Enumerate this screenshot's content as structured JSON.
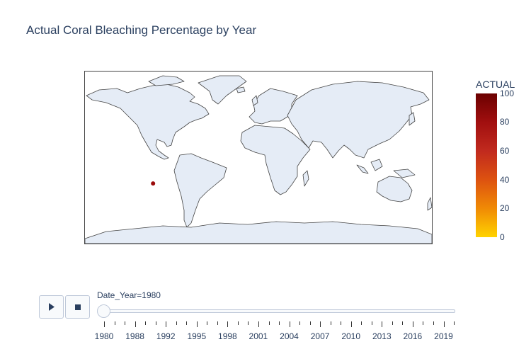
{
  "title": "Actual Coral Bleaching Percentage by Year",
  "colors": {
    "land": "#e5ecf6",
    "coastline": "#444444",
    "frame": "#444444",
    "text": "#2a3f5f",
    "marker": "#9a0a0a",
    "colorscale": [
      "#ffd300",
      "#f08a05",
      "#dd5210",
      "#c12a1e",
      "#a10f0f",
      "#6b0000"
    ]
  },
  "colorbar": {
    "title": "ACTUAL",
    "ticks": [
      "100",
      "80",
      "60",
      "40",
      "20",
      "0"
    ]
  },
  "map": {
    "projection": "equirectangular",
    "points": [
      {
        "lon": -109.3,
        "lat": -27.1,
        "value": 88
      }
    ]
  },
  "controls": {
    "play_icon": "play-icon",
    "stop_icon": "stop-icon"
  },
  "slider": {
    "current_label": "Date_Year=1980",
    "current_index": 0,
    "labels": [
      "1980",
      "1988",
      "1992",
      "1995",
      "1998",
      "2001",
      "2004",
      "2007",
      "2010",
      "2013",
      "2016",
      "2019"
    ],
    "minor_tick_count": 34
  }
}
